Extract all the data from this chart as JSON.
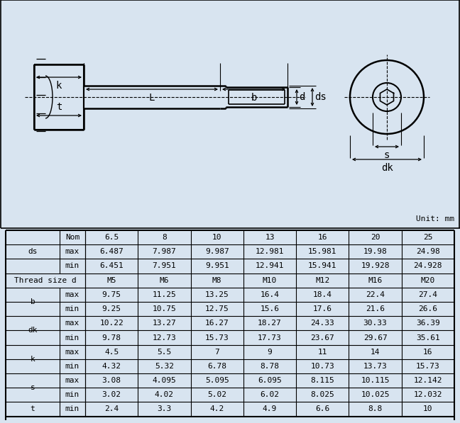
{
  "bg_color": "#d8e4f0",
  "line_color": "#000000",
  "drawing_bg": "#d8e4f0",
  "unit_text": "Unit: mm",
  "table_data": [
    [
      "ds",
      "Nom",
      [
        "6.5",
        "8",
        "10",
        "13",
        "16",
        "20",
        "25"
      ]
    ],
    [
      "ds",
      "max",
      [
        "6.487",
        "7.987",
        "9.987",
        "12.981",
        "15.981",
        "19.98",
        "24.98"
      ]
    ],
    [
      "ds",
      "min",
      [
        "6.451",
        "7.951",
        "9.951",
        "12.941",
        "15.941",
        "19.928",
        "24.928"
      ]
    ],
    [
      "Thread size d",
      "",
      [
        "M5",
        "M6",
        "M8",
        "M10",
        "M12",
        "M16",
        "M20"
      ]
    ],
    [
      "b",
      "max",
      [
        "9.75",
        "11.25",
        "13.25",
        "16.4",
        "18.4",
        "22.4",
        "27.4"
      ]
    ],
    [
      "b",
      "min",
      [
        "9.25",
        "10.75",
        "12.75",
        "15.6",
        "17.6",
        "21.6",
        "26.6"
      ]
    ],
    [
      "dk",
      "max",
      [
        "10.22",
        "13.27",
        "16.27",
        "18.27",
        "24.33",
        "30.33",
        "36.39"
      ]
    ],
    [
      "dk",
      "min",
      [
        "9.78",
        "12.73",
        "15.73",
        "17.73",
        "23.67",
        "29.67",
        "35.61"
      ]
    ],
    [
      "k",
      "max",
      [
        "4.5",
        "5.5",
        "7",
        "9",
        "11",
        "14",
        "16"
      ]
    ],
    [
      "k",
      "min",
      [
        "4.32",
        "5.32",
        "6.78",
        "8.78",
        "10.73",
        "13.73",
        "15.73"
      ]
    ],
    [
      "s",
      "max",
      [
        "3.08",
        "4.095",
        "5.095",
        "6.095",
        "8.115",
        "10.115",
        "12.142"
      ]
    ],
    [
      "s",
      "min",
      [
        "3.02",
        "4.02",
        "5.02",
        "6.02",
        "8.025",
        "10.025",
        "12.032"
      ]
    ],
    [
      "t",
      "min",
      [
        "2.4",
        "3.3",
        "4.2",
        "4.9",
        "6.6",
        "8.8",
        "10"
      ]
    ]
  ],
  "param_spans": {
    "ds": 3,
    "Thread size d": 1,
    "b": 2,
    "dk": 2,
    "k": 2,
    "s": 2,
    "t": 1
  }
}
